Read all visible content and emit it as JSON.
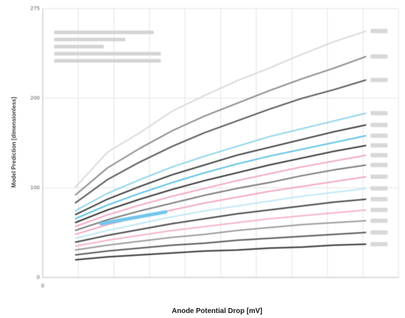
{
  "chart_data": {
    "type": "line",
    "title": "",
    "xlabel": "Anode Potential Drop [mV]",
    "ylabel": "Model Prediction [dimensionless]",
    "xlim": [
      0,
      110
    ],
    "ylim": [
      0,
      275
    ],
    "x_ticks": [
      "0",
      "",
      "",
      "",
      "",
      "",
      "",
      "",
      "",
      "",
      ""
    ],
    "y_ticks": [
      "0",
      "100",
      "200",
      "275"
    ],
    "x": [
      10,
      20,
      30,
      40,
      50,
      60,
      70,
      80,
      90,
      100
    ],
    "series": [
      {
        "label": "",
        "color": "#d9d9d9",
        "values": [
          92,
          128,
          148,
          170,
          186,
          201,
          214,
          228,
          241,
          252
        ]
      },
      {
        "label": "",
        "color": "#8a8a8a",
        "values": [
          84,
          112,
          132,
          150,
          165,
          178,
          191,
          203,
          214,
          226
        ]
      },
      {
        "label": "",
        "color": "#555555",
        "values": [
          76,
          100,
          118,
          134,
          148,
          160,
          172,
          183,
          192,
          202
        ]
      },
      {
        "label": "",
        "color": "#8fd3ea",
        "values": [
          68,
          86,
          100,
          113,
          124,
          134,
          144,
          152,
          160,
          168
        ]
      },
      {
        "label": "",
        "color": "#3a3a3a",
        "values": [
          64,
          80,
          93,
          105,
          115,
          125,
          133,
          141,
          149,
          156
        ]
      },
      {
        "label": "",
        "color": "#5cc0e2",
        "values": [
          60,
          74,
          86,
          97,
          107,
          116,
          124,
          131,
          138,
          145
        ]
      },
      {
        "label": "",
        "color": "#2e2e2e",
        "values": [
          56,
          69,
          80,
          90,
          99,
          107,
          115,
          122,
          129,
          135
        ]
      },
      {
        "label": "",
        "color": "#f2a6bd",
        "values": [
          52,
          64,
          74,
          83,
          91,
          99,
          106,
          113,
          119,
          125
        ]
      },
      {
        "label": "",
        "color": "#777777",
        "values": [
          48,
          59,
          68,
          76,
          84,
          91,
          97,
          104,
          110,
          115
        ]
      },
      {
        "label": "",
        "color": "#f2a6bd",
        "values": [
          44,
          54,
          62,
          69,
          76,
          82,
          88,
          93,
          98,
          103
        ]
      },
      {
        "label": "",
        "color": "#bfe7f4",
        "values": [
          40,
          48,
          55,
          62,
          68,
          73,
          78,
          83,
          87,
          91
        ]
      },
      {
        "label": "",
        "color": "#444444",
        "values": [
          36,
          43,
          49,
          55,
          60,
          65,
          69,
          73,
          77,
          80
        ]
      },
      {
        "label": "",
        "color": "#f4b2c6",
        "values": [
          32,
          38,
          43,
          48,
          52,
          56,
          60,
          63,
          66,
          69
        ]
      },
      {
        "label": "",
        "color": "#999999",
        "values": [
          28,
          33,
          37,
          41,
          44,
          48,
          51,
          54,
          56,
          58
        ]
      },
      {
        "label": "",
        "color": "#555555",
        "values": [
          23,
          27,
          30,
          33,
          35,
          38,
          40,
          42,
          44,
          46
        ]
      },
      {
        "label": "",
        "color": "#333333",
        "values": [
          18,
          21,
          23,
          25,
          27,
          28,
          30,
          31,
          33,
          34
        ]
      }
    ],
    "highlight": {
      "color": "#73c6ea",
      "x": [
        18,
        38
      ],
      "y": [
        55,
        67
      ]
    },
    "note_lines": [
      "",
      "",
      "",
      "",
      ""
    ],
    "grid": true
  }
}
